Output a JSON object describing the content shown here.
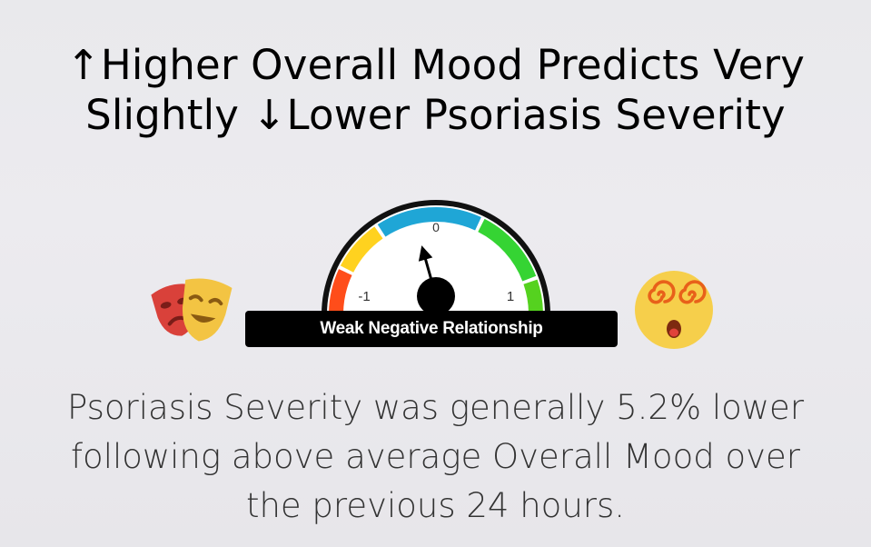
{
  "title": {
    "line1": "↑Higher Overall Mood Predicts Very",
    "line2": "Slightly ↓Lower Psoriasis Severity"
  },
  "gauge": {
    "label": "Weak Negative Relationship",
    "tick_min": "-1",
    "tick_mid": "0",
    "tick_max": "1",
    "value": -0.05,
    "segment_colors": [
      "#ff4d1a",
      "#ffd21f",
      "#1fa6d6",
      "#35d433",
      "#55d21f"
    ]
  },
  "icons": {
    "left": "theater-masks-icon",
    "right": "dizzy-face-icon"
  },
  "summary": {
    "line1": "Psoriasis Severity was generally 5.2% lower",
    "line2": "following above average Overall Mood over",
    "line3": "the previous 24 hours."
  }
}
